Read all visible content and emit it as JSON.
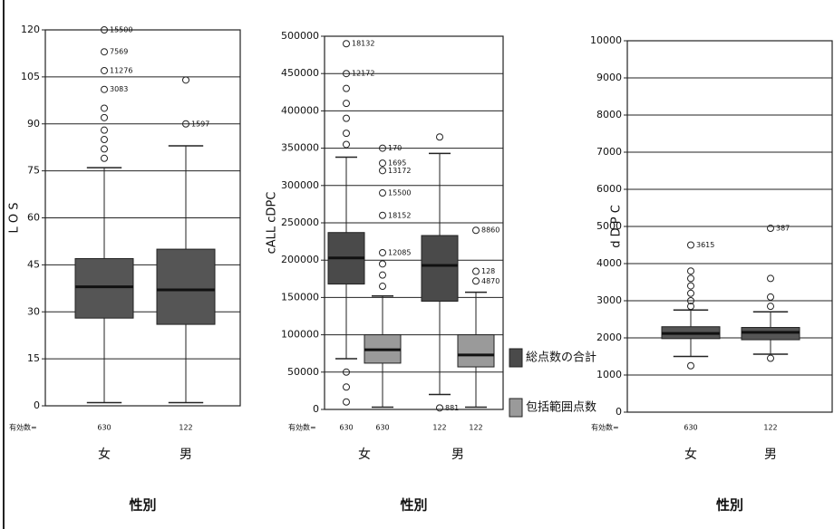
{
  "chart_data": [
    {
      "type": "box",
      "ylabel": "L O S",
      "xlabel": "性別",
      "n_label": "有効数=",
      "categories": [
        "女",
        "男"
      ],
      "ylim": [
        0,
        120
      ],
      "yticks": [
        0,
        15,
        30,
        45,
        60,
        75,
        90,
        105,
        120
      ],
      "grid": true,
      "series": [
        {
          "color": "#555555",
          "boxes": [
            {
              "n": 630,
              "low": 1,
              "q1": 28,
              "median": 38,
              "q3": 47,
              "high": 76,
              "outliers": [
                {
                  "value": 120,
                  "label": "15500"
                },
                {
                  "value": 113,
                  "label": "7569"
                },
                {
                  "value": 107,
                  "label": "11276"
                },
                {
                  "value": 101,
                  "label": "3083"
                },
                95,
                92,
                88,
                85,
                82,
                79
              ]
            },
            {
              "n": 122,
              "low": 1,
              "q1": 26,
              "median": 37,
              "q3": 50,
              "high": 83,
              "outliers": [
                104,
                {
                  "value": 90,
                  "label": "1597"
                }
              ]
            }
          ]
        }
      ]
    },
    {
      "type": "box",
      "ylabel": "cALL cDPC",
      "xlabel": "性別",
      "n_label": "有効数=",
      "categories": [
        "女",
        "男"
      ],
      "ylim": [
        0,
        500000
      ],
      "yticks": [
        0,
        50000,
        100000,
        150000,
        200000,
        250000,
        300000,
        350000,
        400000,
        450000,
        500000
      ],
      "grid": true,
      "series": [
        {
          "name": "総点数の合計",
          "color": "#4a4a4a",
          "boxes": [
            {
              "n": 630,
              "low": 68000,
              "q1": 168000,
              "median": 203000,
              "q3": 237000,
              "high": 338000,
              "outliers": [
                {
                  "value": 490000,
                  "label": "18132"
                },
                {
                  "value": 450000,
                  "label": "12172"
                },
                430000,
                410000,
                390000,
                370000,
                355000,
                50000,
                30000,
                10000
              ]
            },
            {
              "n": 122,
              "low": 20000,
              "q1": 145000,
              "median": 193000,
              "q3": 233000,
              "high": 343000,
              "outliers": [
                365000,
                {
                  "value": 2000,
                  "label": "881"
                }
              ]
            }
          ]
        },
        {
          "name": "包括範囲点数",
          "color": "#9a9a9a",
          "boxes": [
            {
              "n": 630,
              "low": 3000,
              "q1": 62000,
              "median": 80000,
              "q3": 100000,
              "high": 152000,
              "outliers": [
                {
                  "value": 350000,
                  "label": "170"
                },
                {
                  "value": 330000,
                  "label": "1695"
                },
                {
                  "value": 320000,
                  "label": "13172"
                },
                {
                  "value": 290000,
                  "label": "15500"
                },
                {
                  "value": 260000,
                  "label": "18152"
                },
                {
                  "value": 210000,
                  "label": "12085"
                },
                195000,
                180000,
                165000
              ]
            },
            {
              "n": 122,
              "low": 3000,
              "q1": 57000,
              "median": 73000,
              "q3": 100000,
              "high": 157000,
              "outliers": [
                {
                  "value": 240000,
                  "label": "8860"
                },
                {
                  "value": 185000,
                  "label": "128"
                },
                {
                  "value": 172000,
                  "label": "4870"
                }
              ]
            }
          ]
        }
      ]
    },
    {
      "type": "box",
      "ylabel": "d D P C",
      "xlabel": "性別",
      "n_label": "有効数=",
      "categories": [
        "女",
        "男"
      ],
      "ylim": [
        0,
        10000
      ],
      "yticks": [
        0,
        1000,
        2000,
        3000,
        4000,
        5000,
        6000,
        7000,
        8000,
        9000,
        10000
      ],
      "grid": true,
      "series": [
        {
          "color": "#555555",
          "boxes": [
            {
              "n": 630,
              "low": 1500,
              "q1": 1980,
              "median": 2120,
              "q3": 2300,
              "high": 2750,
              "outliers": [
                {
                  "value": 4500,
                  "label": "3615"
                },
                3800,
                3600,
                3400,
                3200,
                3000,
                2850,
                1250
              ]
            },
            {
              "n": 122,
              "low": 1560,
              "q1": 1950,
              "median": 2150,
              "q3": 2280,
              "high": 2700,
              "outliers": [
                {
                  "value": 4950,
                  "label": "387"
                },
                3600,
                3100,
                2850,
                1450
              ]
            }
          ]
        }
      ]
    }
  ]
}
